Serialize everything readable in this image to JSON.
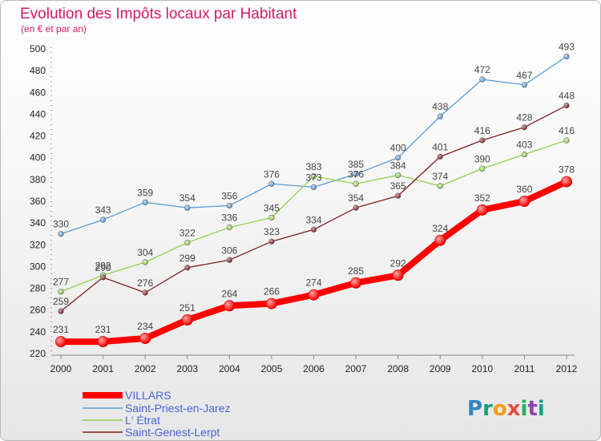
{
  "chart_data": {
    "type": "line",
    "title": "Evolution des Impôts locaux par Habitant",
    "subtitle": "(en € et par an)",
    "x": [
      "2000",
      "2001",
      "2002",
      "2003",
      "2004",
      "2005",
      "2006",
      "2007",
      "2008",
      "2009",
      "2010",
      "2011",
      "2012"
    ],
    "ylim": [
      220,
      500
    ],
    "yticks": [
      220,
      240,
      260,
      280,
      300,
      320,
      340,
      360,
      380,
      400,
      420,
      440,
      460,
      480,
      500
    ],
    "grid": false,
    "legend_position": "bottom-left",
    "series": [
      {
        "name": "VILLARS",
        "color": "#ff0000",
        "values": [
          231,
          231,
          234,
          251,
          264,
          266,
          274,
          285,
          292,
          324,
          352,
          360,
          378
        ]
      },
      {
        "name": "Saint-Priest-en-Jarez",
        "color": "#5b9bd5",
        "values": [
          330,
          343,
          359,
          354,
          356,
          376,
          373,
          385,
          400,
          438,
          472,
          467,
          493
        ]
      },
      {
        "name": "L' Étrat",
        "color": "#92d050",
        "values": [
          277,
          292,
          304,
          322,
          336,
          345,
          383,
          376,
          384,
          374,
          390,
          403,
          416
        ]
      },
      {
        "name": "Saint-Genest-Lerpt",
        "color": "#7f1f1f",
        "values": [
          259,
          290,
          276,
          299,
          306,
          323,
          334,
          354,
          365,
          401,
          416,
          428,
          448
        ]
      }
    ]
  },
  "logo": {
    "text": "Proxiti"
  }
}
